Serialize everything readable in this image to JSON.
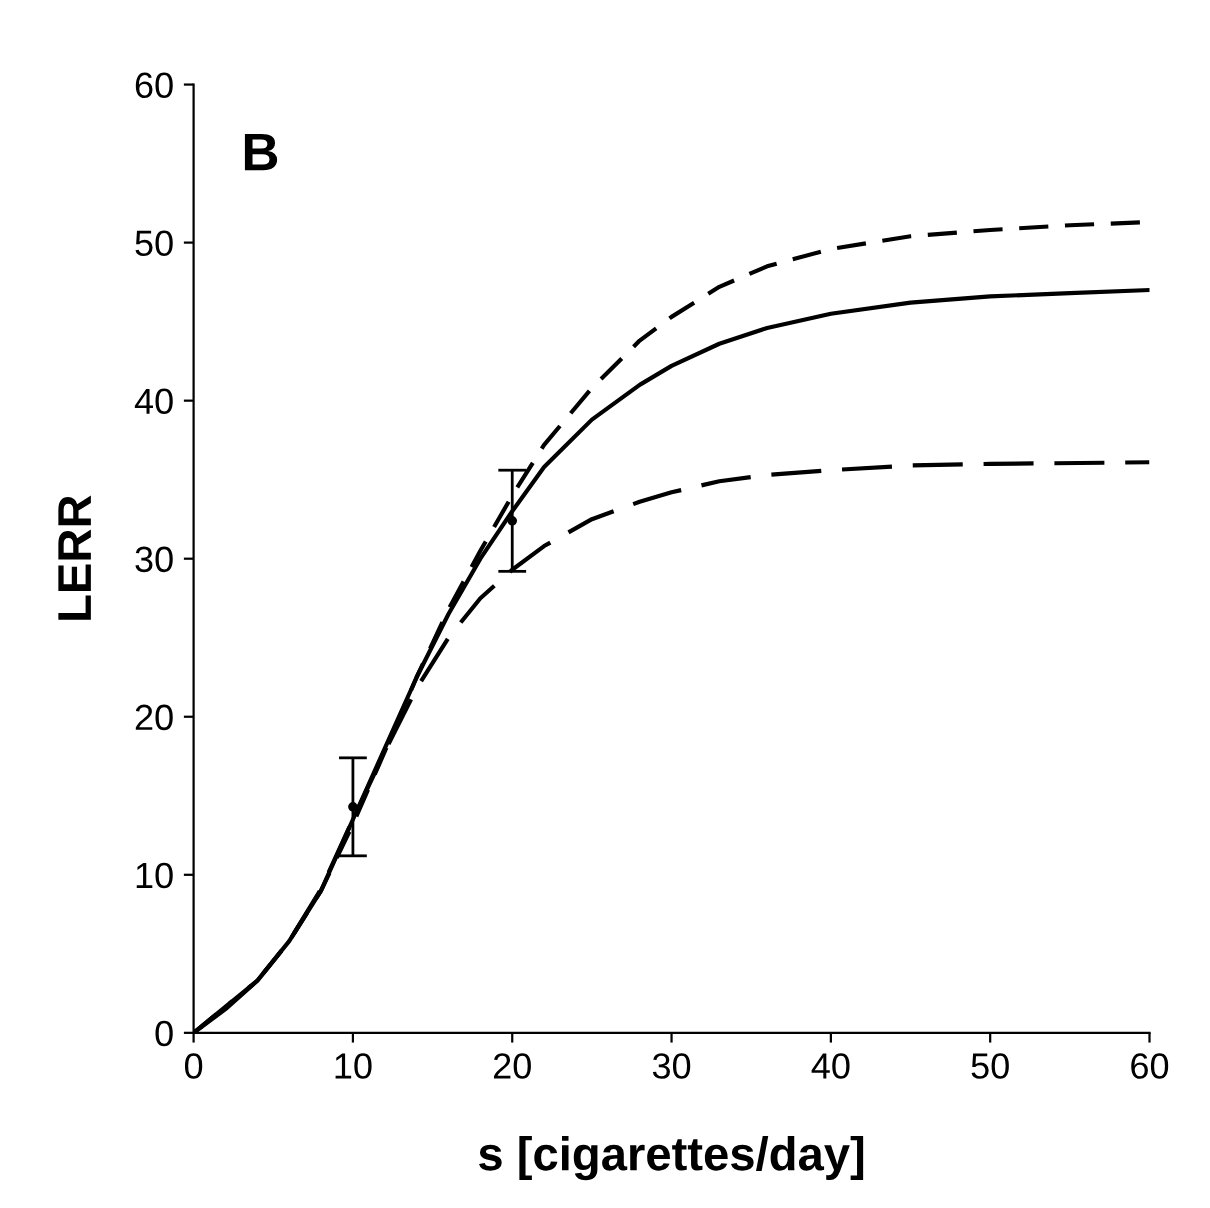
{
  "chart_data": {
    "type": "line",
    "xlabel": "s [cigarettes/day]",
    "ylabel": "LERR",
    "annotations": [
      "B"
    ],
    "xlim": [
      0,
      60
    ],
    "ylim": [
      0,
      60
    ],
    "xticks": [
      0,
      10,
      20,
      30,
      40,
      50,
      60
    ],
    "yticks": [
      0,
      10,
      20,
      30,
      40,
      50,
      60
    ],
    "grid": false,
    "marker": "none",
    "series": [
      {
        "color": "#000000",
        "line_style": "solid",
        "x": [
          0,
          2,
          4,
          6,
          8,
          10,
          12,
          14,
          16,
          18,
          20,
          22,
          25,
          28,
          30,
          33,
          36,
          40,
          45,
          50,
          55,
          60
        ],
        "values": [
          0,
          1.5,
          3.3,
          5.8,
          9,
          13.5,
          18,
          22.5,
          26.5,
          30,
          33,
          35.8,
          38.8,
          41,
          42.2,
          43.6,
          44.6,
          45.5,
          46.2,
          46.6,
          46.8,
          47
        ]
      },
      {
        "color": "#000000",
        "line_style": "dashed",
        "x": [
          0,
          4,
          6,
          8,
          10,
          12,
          14,
          16,
          18,
          20,
          22,
          25,
          28,
          30,
          33,
          36,
          40,
          45,
          50,
          55,
          60
        ],
        "values": [
          0,
          3.3,
          5.8,
          9,
          13.2,
          17.8,
          22.5,
          26.8,
          30.5,
          34,
          37.2,
          40.8,
          43.8,
          45.3,
          47.2,
          48.5,
          49.6,
          50.4,
          50.8,
          51.1,
          51.3
        ]
      },
      {
        "color": "#000000",
        "line_style": "dashed",
        "x": [
          0,
          4,
          6,
          8,
          10,
          12,
          14,
          16,
          18,
          20,
          22,
          25,
          28,
          30,
          33,
          36,
          40,
          45,
          50,
          60
        ],
        "values": [
          0,
          3.3,
          5.8,
          9.1,
          13.5,
          17.8,
          21.8,
          25,
          27.5,
          29.3,
          30.8,
          32.5,
          33.6,
          34.2,
          34.9,
          35.3,
          35.6,
          35.9,
          36,
          36.1
        ]
      },
      {
        "type": "scatter",
        "color": "#000000",
        "marker": "circle",
        "x": [
          10,
          20
        ],
        "values": [
          14.3,
          32.4
        ],
        "errors": [
          [
            11.2,
            17.4
          ],
          [
            29.2,
            35.6
          ]
        ]
      }
    ]
  }
}
